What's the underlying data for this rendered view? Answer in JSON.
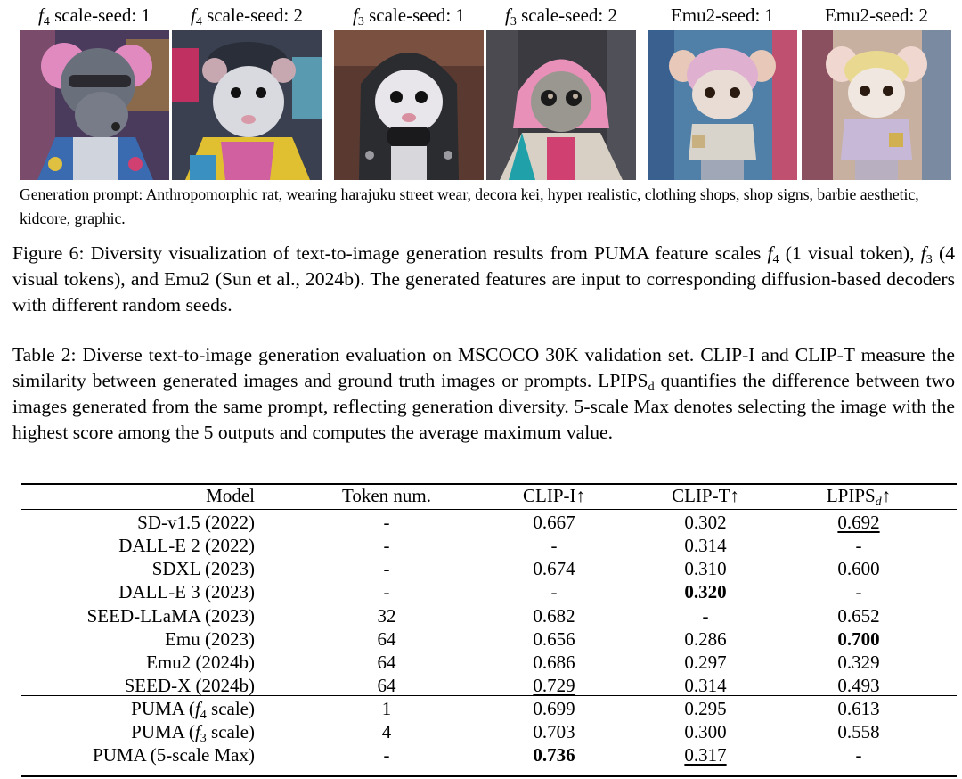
{
  "figure": {
    "panels": [
      {
        "symbol": "f",
        "sub": "4",
        "text": " scale-seed: 1",
        "icon": "rat-portrait-image"
      },
      {
        "symbol": "f",
        "sub": "4",
        "text": " scale-seed: 2",
        "icon": "rat-portrait-image"
      },
      {
        "symbol": "f",
        "sub": "3",
        "text": " scale-seed: 1",
        "icon": "rat-portrait-image"
      },
      {
        "symbol": "f",
        "sub": "3",
        "text": " scale-seed: 2",
        "icon": "rat-portrait-image"
      },
      {
        "symbol": "",
        "sub": "",
        "text": "Emu2-seed: 1",
        "icon": "rat-figurine-image"
      },
      {
        "symbol": "",
        "sub": "",
        "text": "Emu2-seed: 2",
        "icon": "rat-figurine-image"
      }
    ],
    "prompt": "Generation prompt: Anthropomorphic rat, wearing harajuku street wear, decora kei, hyper realistic, clothing shops, shop signs, barbie aesthetic, kidcore, graphic.",
    "caption": {
      "p1": "Figure 6: Diversity visualization of text-to-image generation results from PUMA feature scales ",
      "f4": "f",
      "f4_sub": "4",
      "p2": " (1 visual token), ",
      "f3": "f",
      "f3_sub": "3",
      "p3": " (4 visual tokens), and Emu2 (Sun et al., 2024b). The generated features are input to corresponding diffusion-based decoders with different random seeds."
    }
  },
  "table": {
    "caption": {
      "p1": "Table 2: Diverse text-to-image generation evaluation on MSCOCO 30K validation set. CLIP-I and CLIP-T measure the similarity between generated images and ground truth images or prompts. LPIPS",
      "sub": "d",
      "p2": " quantifies the difference between two images generated from the same prompt, reflecting generation diversity. 5-scale Max denotes selecting the image with the highest score among the 5 outputs and computes the average maximum value."
    },
    "headers": {
      "model": "Model",
      "tokens": "Token num.",
      "clip_i": "CLIP-I↑",
      "clip_t": "CLIP-T↑",
      "lpips": "LPIPS",
      "lpips_sub": "d",
      "lpips_arrow": "↑"
    },
    "groups": [
      [
        {
          "model": "SD-v1.5 (2022)",
          "tokens": "-",
          "clip_i": "0.667",
          "clip_t": "0.302",
          "lpips": "0.692",
          "style": {
            "lpips": "underline"
          }
        },
        {
          "model": "DALL-E 2 (2022)",
          "tokens": "-",
          "clip_i": "-",
          "clip_t": "0.314",
          "lpips": "-",
          "style": {}
        },
        {
          "model": "SDXL (2023)",
          "tokens": "-",
          "clip_i": "0.674",
          "clip_t": "0.310",
          "lpips": "0.600",
          "style": {}
        },
        {
          "model": "DALL-E 3 (2023)",
          "tokens": "-",
          "clip_i": "-",
          "clip_t": "0.320",
          "lpips": "-",
          "style": {
            "clip_t": "bold"
          }
        }
      ],
      [
        {
          "model": "SEED-LLaMA (2023)",
          "tokens": "32",
          "clip_i": "0.682",
          "clip_t": "-",
          "lpips": "0.652",
          "style": {}
        },
        {
          "model": "Emu (2023)",
          "tokens": "64",
          "clip_i": "0.656",
          "clip_t": "0.286",
          "lpips": "0.700",
          "style": {
            "lpips": "bold"
          }
        },
        {
          "model": "Emu2 (2024b)",
          "tokens": "64",
          "clip_i": "0.686",
          "clip_t": "0.297",
          "lpips": "0.329",
          "style": {}
        },
        {
          "model": "SEED-X (2024b)",
          "tokens": "64",
          "clip_i": "0.729",
          "clip_t": "0.314",
          "lpips": "0.493",
          "style": {
            "clip_i": "underline"
          }
        }
      ],
      [
        {
          "model_pre": "PUMA (",
          "model_sym": "f",
          "model_sub": "4",
          "model_post": " scale)",
          "tokens": "1",
          "clip_i": "0.699",
          "clip_t": "0.295",
          "lpips": "0.613",
          "style": {}
        },
        {
          "model_pre": "PUMA (",
          "model_sym": "f",
          "model_sub": "3",
          "model_post": " scale)",
          "tokens": "4",
          "clip_i": "0.703",
          "clip_t": "0.300",
          "lpips": "0.558",
          "style": {}
        },
        {
          "model": "PUMA (5-scale Max)",
          "tokens": "-",
          "clip_i": "0.736",
          "clip_t": "0.317",
          "lpips": "-",
          "style": {
            "clip_i": "bold",
            "clip_t": "underline"
          }
        }
      ]
    ]
  }
}
